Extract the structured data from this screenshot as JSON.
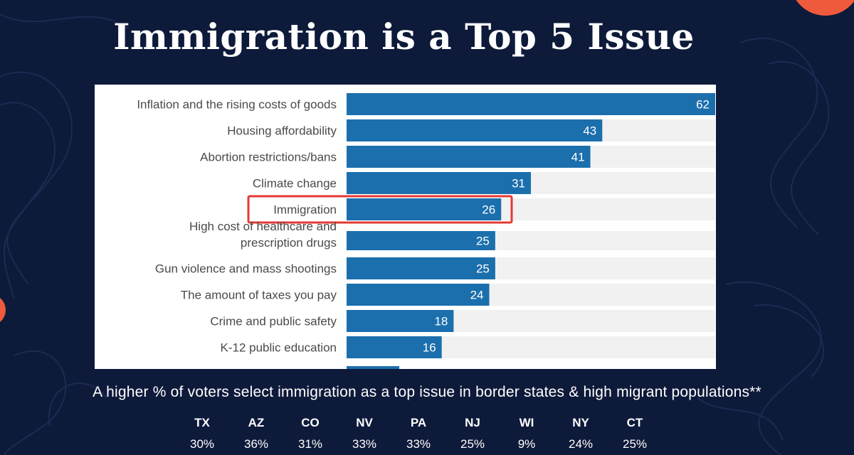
{
  "title": "Immigration is a Top 5 Issue",
  "subtitle": "A higher % of voters select immigration as a top issue in border states & high migrant populations**",
  "colors": {
    "background": "#0e1a3a",
    "bar": "#1b6fad",
    "bar_track": "#f1f1f1",
    "highlight": "#e53935",
    "accent": "#ef5a3c"
  },
  "chart_data": {
    "type": "bar",
    "orientation": "horizontal",
    "categories": [
      "Inflation and the rising costs of goods",
      "Housing affordability",
      "Abortion restrictions/bans",
      "Climate change",
      "Immigration",
      "High cost of healthcare and prescription drugs",
      "Gun violence and mass shootings",
      "The amount of taxes you pay",
      "Crime and public safety",
      "K-12 public education"
    ],
    "values": [
      62,
      43,
      41,
      31,
      26,
      25,
      25,
      24,
      18,
      16
    ],
    "highlighted_category": "Immigration",
    "xlim": [
      0,
      62
    ],
    "grid": false,
    "legend": "none"
  },
  "states": [
    {
      "code": "TX",
      "pct": "30%"
    },
    {
      "code": "AZ",
      "pct": "36%"
    },
    {
      "code": "CO",
      "pct": "31%"
    },
    {
      "code": "NV",
      "pct": "33%"
    },
    {
      "code": "PA",
      "pct": "33%"
    },
    {
      "code": "NJ",
      "pct": "25%"
    },
    {
      "code": "WI",
      "pct": "9%"
    },
    {
      "code": "NY",
      "pct": "24%"
    },
    {
      "code": "CT",
      "pct": "25%"
    }
  ]
}
